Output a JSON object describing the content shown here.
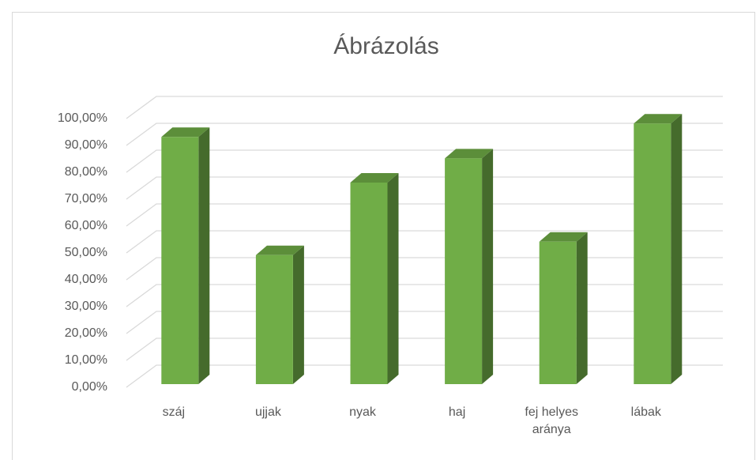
{
  "chart_data": {
    "type": "bar3d",
    "title": "Ábrázolás",
    "categories": [
      "száj",
      "ujjak",
      "nyak",
      "haj",
      "fej helyes aránya",
      "lábak"
    ],
    "values": [
      92,
      48,
      75,
      84,
      53,
      97
    ],
    "color": "#70ad47",
    "ylim": [
      0,
      100
    ],
    "yticks": [
      {
        "value": 0,
        "label": "0,00%"
      },
      {
        "value": 10,
        "label": "10,00%"
      },
      {
        "value": 20,
        "label": "20,00%"
      },
      {
        "value": 30,
        "label": "30,00%"
      },
      {
        "value": 40,
        "label": "40,00%"
      },
      {
        "value": 50,
        "label": "50,00%"
      },
      {
        "value": 60,
        "label": "60,00%"
      },
      {
        "value": 70,
        "label": "70,00%"
      },
      {
        "value": 80,
        "label": "80,00%"
      },
      {
        "value": 90,
        "label": "90,00%"
      },
      {
        "value": 100,
        "label": "100,00%"
      }
    ],
    "grid": true
  }
}
